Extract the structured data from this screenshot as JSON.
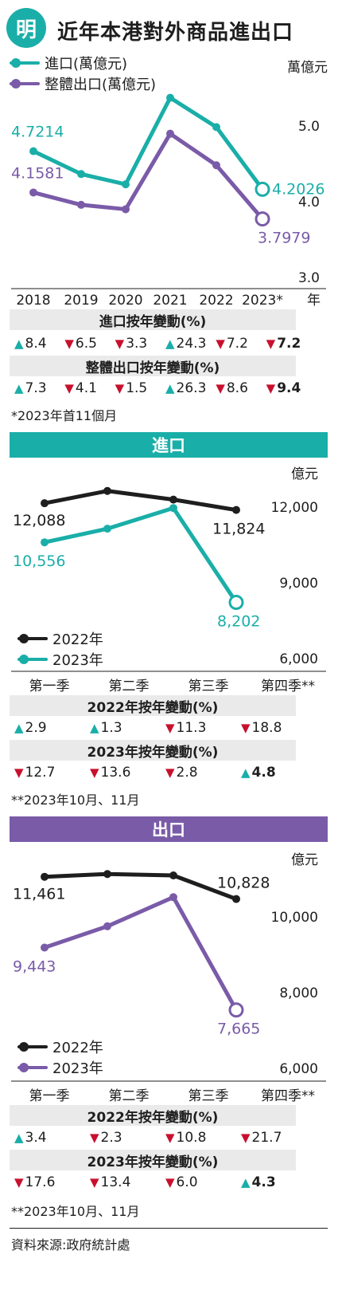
{
  "header": {
    "logo_char": "明",
    "title": "近年本港對外商品進出口"
  },
  "colors": {
    "teal": "#1aaea8",
    "purple": "#7a5ba8",
    "black": "#1e1e1e",
    "red": "#c8102e",
    "gray": "#eaeaea"
  },
  "chart_data": [
    {
      "type": "line",
      "unit": "萬億元",
      "x": [
        "2018",
        "2019",
        "2020",
        "2021",
        "2022",
        "2023*"
      ],
      "x_suffix": "年",
      "ylim": [
        3.0,
        5.5
      ],
      "yticks": [
        "5.0",
        "4.0",
        "3.0"
      ],
      "series": [
        {
          "name": "進口(萬億元)",
          "color": "#1aaea8",
          "values": [
            4.7214,
            4.41,
            4.27,
            5.45,
            5.05,
            4.2026
          ],
          "labels": [
            "4.7214",
            "",
            "",
            "",
            "",
            "4.2026"
          ]
        },
        {
          "name": "整體出口(萬億元)",
          "color": "#7a5ba8",
          "values": [
            4.1581,
            3.99,
            3.93,
            4.96,
            4.53,
            3.7979
          ],
          "labels": [
            "4.1581",
            "",
            "",
            "",
            "",
            "3.7979"
          ]
        }
      ],
      "tables": [
        {
          "heading": "進口按年變動(%)",
          "cells": [
            {
              "dir": "up",
              "v": "8.4"
            },
            {
              "dir": "down",
              "v": "6.5"
            },
            {
              "dir": "down",
              "v": "3.3"
            },
            {
              "dir": "up",
              "v": "24.3"
            },
            {
              "dir": "down",
              "v": "7.2"
            },
            {
              "dir": "down",
              "v": "7.2",
              "bold": true
            }
          ]
        },
        {
          "heading": "整體出口按年變動(%)",
          "cells": [
            {
              "dir": "up",
              "v": "7.3"
            },
            {
              "dir": "down",
              "v": "4.1"
            },
            {
              "dir": "down",
              "v": "1.5"
            },
            {
              "dir": "up",
              "v": "26.3"
            },
            {
              "dir": "down",
              "v": "8.6"
            },
            {
              "dir": "down",
              "v": "9.4",
              "bold": true
            }
          ]
        }
      ],
      "footnote": "*2023年首11個月"
    },
    {
      "type": "line",
      "band_title": "進口",
      "unit": "億元",
      "x": [
        "第一季",
        "第二季",
        "第三季",
        "第四季**"
      ],
      "ylim": [
        6000,
        13000
      ],
      "yticks": [
        "12,000",
        "9,000",
        "6,000"
      ],
      "series": [
        {
          "name": "2022年",
          "color": "#1e1e1e",
          "values": [
            12088,
            12570,
            12230,
            11824
          ],
          "labels": [
            "12,088",
            "",
            "",
            "11,824"
          ]
        },
        {
          "name": "2023年",
          "color": "#1aaea8",
          "values": [
            10556,
            11090,
            11900,
            8202
          ],
          "labels": [
            "10,556",
            "",
            "",
            "8,202"
          ]
        }
      ],
      "tables": [
        {
          "heading": "2022年按年變動(%)",
          "cells": [
            {
              "dir": "up",
              "v": "2.9"
            },
            {
              "dir": "up",
              "v": "1.3"
            },
            {
              "dir": "down",
              "v": "11.3"
            },
            {
              "dir": "down",
              "v": "18.8"
            }
          ]
        },
        {
          "heading": "2023年按年變動(%)",
          "cells": [
            {
              "dir": "down",
              "v": "12.7"
            },
            {
              "dir": "down",
              "v": "13.6"
            },
            {
              "dir": "down",
              "v": "2.8"
            },
            {
              "dir": "up",
              "v": "4.8",
              "bold": true
            }
          ]
        }
      ],
      "footnote": "**2023年10月、11月"
    },
    {
      "type": "line",
      "band_title": "出口",
      "unit": "億元",
      "x": [
        "第一季",
        "第二季",
        "第三季",
        "第四季**"
      ],
      "ylim": [
        6000,
        12000
      ],
      "yticks": [
        "10,000",
        "8,000",
        "6,000"
      ],
      "series": [
        {
          "name": "2022年",
          "color": "#1e1e1e",
          "values": [
            11461,
            11540,
            11500,
            10828
          ],
          "labels": [
            "11,461",
            "",
            "",
            "10,828"
          ]
        },
        {
          "name": "2023年",
          "color": "#7a5ba8",
          "values": [
            9443,
            10050,
            10880,
            7665
          ],
          "labels": [
            "9,443",
            "",
            "",
            "7,665"
          ]
        }
      ],
      "tables": [
        {
          "heading": "2022年按年變動(%)",
          "cells": [
            {
              "dir": "up",
              "v": "3.4"
            },
            {
              "dir": "down",
              "v": "2.3"
            },
            {
              "dir": "down",
              "v": "10.8"
            },
            {
              "dir": "down",
              "v": "21.7"
            }
          ]
        },
        {
          "heading": "2023年按年變動(%)",
          "cells": [
            {
              "dir": "down",
              "v": "17.6"
            },
            {
              "dir": "down",
              "v": "13.4"
            },
            {
              "dir": "down",
              "v": "6.0"
            },
            {
              "dir": "up",
              "v": "4.3",
              "bold": true
            }
          ]
        }
      ],
      "footnote": "**2023年10月、11月"
    }
  ],
  "source": "資料來源:政府統計處"
}
